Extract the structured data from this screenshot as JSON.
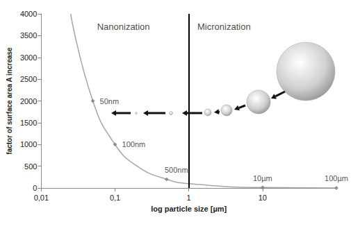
{
  "chart_data": {
    "type": "line",
    "x_label": "log particle size [µm]",
    "y_label": "factor of surface area A increase",
    "x": [
      0.025,
      0.05,
      0.1,
      0.2,
      0.5,
      1,
      10,
      100
    ],
    "values": [
      4000,
      2000,
      1000,
      500,
      200,
      100,
      10,
      1
    ],
    "color": "#a6a6a6",
    "line_style": "solid",
    "marker": "diamond",
    "log": "x",
    "xlim": [
      0.01,
      100
    ],
    "xticks": [
      {
        "value": 0.01,
        "label": "0,01"
      },
      {
        "value": 0.1,
        "label": "0,1"
      },
      1,
      10
    ],
    "ylim": [
      0,
      4000
    ],
    "yticks": [
      0,
      500,
      1000,
      1500,
      2000,
      2500,
      3000,
      3500,
      4000
    ],
    "grid": false,
    "annotations": [
      {
        "text": "50nm",
        "x": 0.05,
        "y": 2000
      },
      {
        "text": "100nm",
        "x": 0.1,
        "y": 1000
      },
      {
        "text": "500nm",
        "x": 0.5,
        "y": 200
      },
      {
        "text": "10µm",
        "x": 10,
        "y": 10
      },
      {
        "text": "100µm",
        "x": 100,
        "y": 1
      }
    ],
    "regions": [
      {
        "text": "Nanonization",
        "x": 0.13,
        "y": 3700
      },
      {
        "text": "Micronization",
        "x": 3,
        "y": 3700
      }
    ],
    "divider_x": 1
  }
}
